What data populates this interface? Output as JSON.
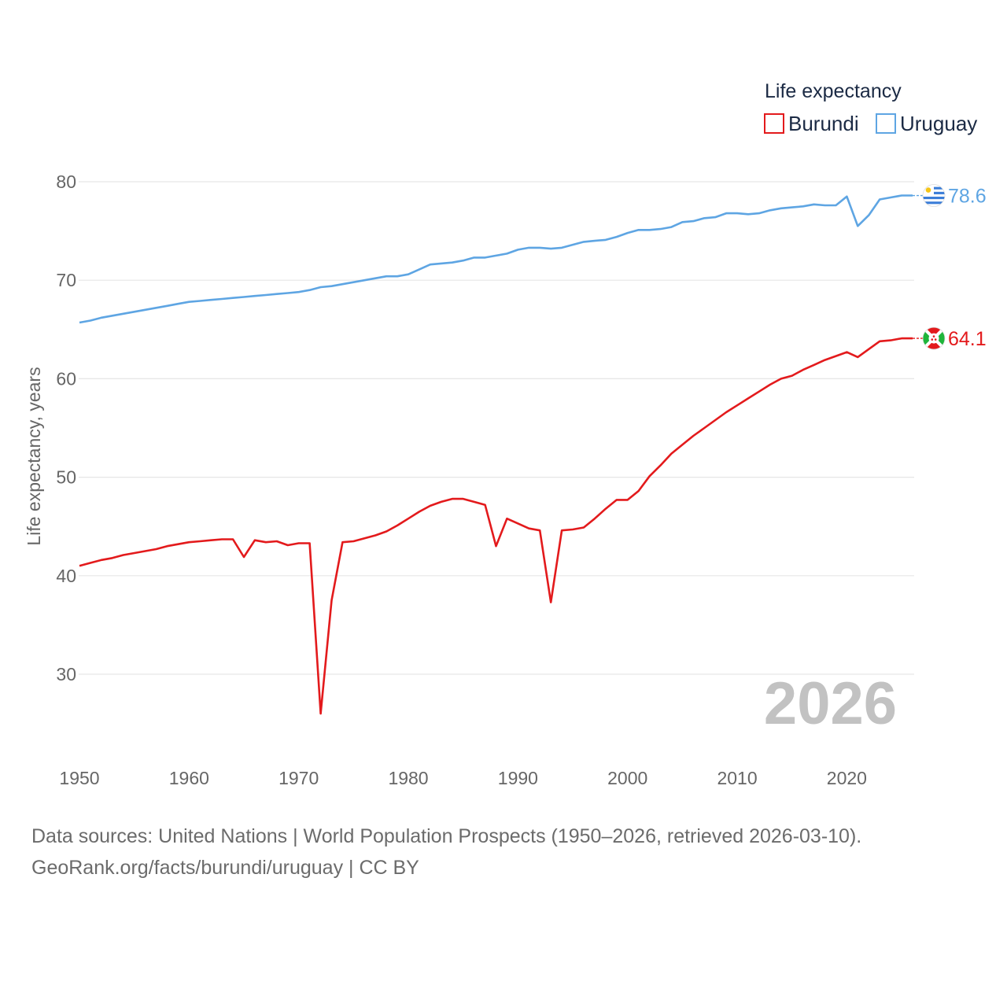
{
  "chart_data": {
    "type": "line",
    "ylabel": "Life expectancy, years",
    "xlim": [
      1950,
      2026
    ],
    "ylim": [
      22,
      85
    ],
    "y_ticks": [
      30,
      40,
      50,
      60,
      70,
      80
    ],
    "x_ticks": [
      1950,
      1960,
      1970,
      1980,
      1990,
      2000,
      2010,
      2020
    ],
    "grid": true,
    "legend": {
      "title": "Life expectancy",
      "position": "top-right",
      "entries": [
        "Burundi",
        "Uruguay"
      ]
    },
    "watermark_year": "2026",
    "series": [
      {
        "name": "Burundi",
        "color": "#e31a1c",
        "end_label": "64.1",
        "flag_icon": "burundi-flag-icon",
        "x": [
          1950,
          1951,
          1952,
          1953,
          1954,
          1955,
          1956,
          1957,
          1958,
          1959,
          1960,
          1961,
          1962,
          1963,
          1964,
          1965,
          1966,
          1967,
          1968,
          1969,
          1970,
          1971,
          1972,
          1973,
          1974,
          1975,
          1976,
          1977,
          1978,
          1979,
          1980,
          1981,
          1982,
          1983,
          1984,
          1985,
          1986,
          1987,
          1988,
          1989,
          1990,
          1991,
          1992,
          1993,
          1994,
          1995,
          1996,
          1997,
          1998,
          1999,
          2000,
          2001,
          2002,
          2003,
          2004,
          2005,
          2006,
          2007,
          2008,
          2009,
          2010,
          2011,
          2012,
          2013,
          2014,
          2015,
          2016,
          2017,
          2018,
          2019,
          2020,
          2021,
          2022,
          2023,
          2024,
          2025,
          2026
        ],
        "values": [
          41.0,
          41.3,
          41.6,
          41.8,
          42.1,
          42.3,
          42.5,
          42.7,
          43.0,
          43.2,
          43.4,
          43.5,
          43.6,
          43.7,
          43.7,
          41.9,
          43.6,
          43.4,
          43.5,
          43.1,
          43.3,
          43.3,
          26.0,
          37.5,
          43.4,
          43.5,
          43.8,
          44.1,
          44.5,
          45.1,
          45.8,
          46.5,
          47.1,
          47.5,
          47.8,
          47.8,
          47.5,
          47.2,
          43.0,
          45.8,
          45.3,
          44.8,
          44.6,
          37.3,
          44.6,
          44.7,
          44.9,
          45.8,
          46.8,
          47.7,
          47.7,
          48.6,
          50.1,
          51.2,
          52.4,
          53.3,
          54.2,
          55.0,
          55.8,
          56.6,
          57.3,
          58.0,
          58.7,
          59.4,
          60.0,
          60.3,
          60.9,
          61.4,
          61.9,
          62.3,
          62.7,
          62.2,
          63.0,
          63.8,
          63.9,
          64.1,
          64.1
        ]
      },
      {
        "name": "Uruguay",
        "color": "#5ea5e3",
        "end_label": "78.6",
        "flag_icon": "uruguay-flag-icon",
        "x": [
          1950,
          1951,
          1952,
          1953,
          1954,
          1955,
          1956,
          1957,
          1958,
          1959,
          1960,
          1961,
          1962,
          1963,
          1964,
          1965,
          1966,
          1967,
          1968,
          1969,
          1970,
          1971,
          1972,
          1973,
          1974,
          1975,
          1976,
          1977,
          1978,
          1979,
          1980,
          1981,
          1982,
          1983,
          1984,
          1985,
          1986,
          1987,
          1988,
          1989,
          1990,
          1991,
          1992,
          1993,
          1994,
          1995,
          1996,
          1997,
          1998,
          1999,
          2000,
          2001,
          2002,
          2003,
          2004,
          2005,
          2006,
          2007,
          2008,
          2009,
          2010,
          2011,
          2012,
          2013,
          2014,
          2015,
          2016,
          2017,
          2018,
          2019,
          2020,
          2021,
          2022,
          2023,
          2024,
          2025,
          2026
        ],
        "values": [
          65.7,
          65.9,
          66.2,
          66.4,
          66.6,
          66.8,
          67.0,
          67.2,
          67.4,
          67.6,
          67.8,
          67.9,
          68.0,
          68.1,
          68.2,
          68.3,
          68.4,
          68.5,
          68.6,
          68.7,
          68.8,
          69.0,
          69.3,
          69.4,
          69.6,
          69.8,
          70.0,
          70.2,
          70.4,
          70.4,
          70.6,
          71.1,
          71.6,
          71.7,
          71.8,
          72.0,
          72.3,
          72.3,
          72.5,
          72.7,
          73.1,
          73.3,
          73.3,
          73.2,
          73.3,
          73.6,
          73.9,
          74.0,
          74.1,
          74.4,
          74.8,
          75.1,
          75.1,
          75.2,
          75.4,
          75.9,
          76.0,
          76.3,
          76.4,
          76.8,
          76.8,
          76.7,
          76.8,
          77.1,
          77.3,
          77.4,
          77.5,
          77.7,
          77.6,
          77.6,
          78.5,
          75.5,
          76.6,
          78.2,
          78.4,
          78.6,
          78.6
        ]
      }
    ]
  },
  "footer": {
    "line1": "Data sources: United Nations | World Population Prospects (1950–2026, retrieved 2026-03-10).",
    "line2": "GeoRank.org/facts/burundi/uruguay | CC BY"
  }
}
